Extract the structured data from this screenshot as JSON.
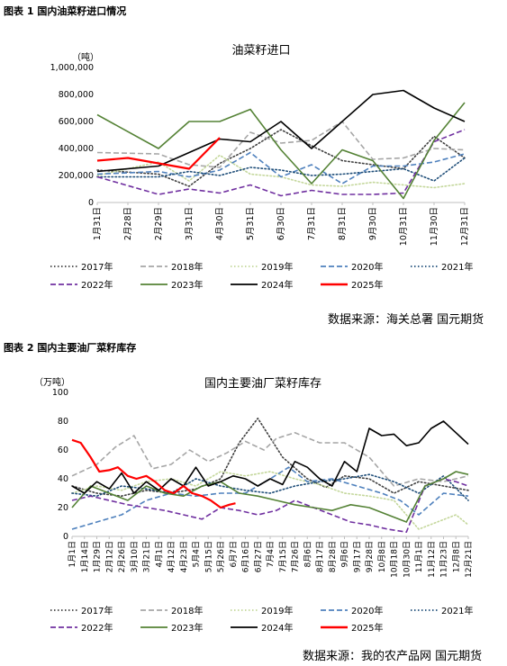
{
  "fig1": {
    "label": "图表 1 国内油菜籽进口情况",
    "source": "数据来源：海关总署 国元期货"
  },
  "fig2": {
    "label": "图表 2 国内主要油厂菜籽库存",
    "source": "数据来源：我的农产品网 国元期货"
  },
  "chart_data": [
    {
      "type": "line",
      "title": "油菜籽进口",
      "unit": "（吨）",
      "ylim": [
        0,
        1000000
      ],
      "yticks": [
        0,
        200000,
        400000,
        600000,
        800000,
        1000000
      ],
      "ytick_labels": [
        "0",
        "200,000",
        "400,000",
        "600,000",
        "800,000",
        "1,000,000"
      ],
      "categories": [
        "1月31日",
        "2月28日",
        "2月29日",
        "3月31日",
        "4月30日",
        "5月31日",
        "6月30日",
        "7月31日",
        "8月31日",
        "9月30日",
        "10月31日",
        "11月30日",
        "12月31日"
      ],
      "legend_position": "bottom",
      "series": [
        {
          "name": "2017年",
          "color": "#404040",
          "dash": "dot",
          "values": [
            240000,
            null,
            210000,
            120000,
            290000,
            400000,
            540000,
            420000,
            310000,
            280000,
            250000,
            490000,
            330000
          ]
        },
        {
          "name": "2018年",
          "color": "#a6a6a6",
          "dash": "dash",
          "values": [
            370000,
            null,
            360000,
            280000,
            260000,
            520000,
            440000,
            460000,
            600000,
            320000,
            330000,
            400000,
            390000
          ]
        },
        {
          "name": "2019年",
          "color": "#c4d79b",
          "dash": "dot",
          "values": [
            200000,
            null,
            300000,
            160000,
            350000,
            210000,
            190000,
            130000,
            120000,
            150000,
            130000,
            110000,
            140000
          ]
        },
        {
          "name": "2020年",
          "color": "#4f81bd",
          "dash": "dash",
          "values": [
            210000,
            null,
            230000,
            190000,
            240000,
            370000,
            190000,
            280000,
            140000,
            270000,
            270000,
            300000,
            360000
          ]
        },
        {
          "name": "2021年",
          "color": "#1f4e79",
          "dash": "dot",
          "values": [
            190000,
            null,
            190000,
            230000,
            200000,
            260000,
            240000,
            200000,
            210000,
            230000,
            250000,
            160000,
            330000
          ]
        },
        {
          "name": "2022年",
          "color": "#7030a0",
          "dash": "dash",
          "values": [
            190000,
            null,
            60000,
            100000,
            70000,
            130000,
            50000,
            90000,
            60000,
            60000,
            70000,
            450000,
            540000
          ]
        },
        {
          "name": "2023年",
          "color": "#548235",
          "dash": "solid",
          "values": [
            650000,
            null,
            400000,
            600000,
            600000,
            690000,
            390000,
            140000,
            390000,
            310000,
            30000,
            460000,
            740000
          ]
        },
        {
          "name": "2024年",
          "color": "#000000",
          "dash": "solid",
          "values": [
            230000,
            null,
            270000,
            370000,
            470000,
            450000,
            600000,
            400000,
            600000,
            800000,
            830000,
            700000,
            600000
          ]
        },
        {
          "name": "2025年",
          "color": "#ff0000",
          "dash": "solid",
          "values": [
            310000,
            330000,
            null,
            250000,
            480000,
            null,
            null,
            null,
            null,
            null,
            null,
            null,
            null
          ]
        }
      ]
    },
    {
      "type": "line",
      "title": "国内主要油厂菜籽库存",
      "unit": "（万吨）",
      "ylim": [
        0,
        100
      ],
      "yticks": [
        0,
        20,
        40,
        60,
        80,
        100
      ],
      "ytick_labels": [
        "0",
        "20",
        "40",
        "60",
        "80",
        "100"
      ],
      "xtick_labels": [
        "1月1日",
        "1月14日",
        "1月29日",
        "2月12日",
        "2月26日",
        "3月10日",
        "3月21日",
        "4月1日",
        "4月12日",
        "4月23日",
        "5月4日",
        "5月15日",
        "5月26日",
        "6月7日",
        "6月16日",
        "6月27日",
        "7月4日",
        "7月15日",
        "7月26日",
        "8月6日",
        "8月17日",
        "8月28日",
        "9月6日",
        "9月17日",
        "9月28日",
        "10月8日",
        "10月18日",
        "10月30日",
        "11月1日",
        "11月12日",
        "11月23日",
        "12月8日",
        "12月21日"
      ],
      "legend_position": "bottom",
      "series": [
        {
          "name": "2017年",
          "color": "#404040",
          "dash": "dot",
          "x": [
            0,
            2,
            4,
            6,
            8,
            10,
            12,
            13.5,
            15,
            17,
            19,
            20.5,
            22,
            24,
            26,
            28,
            30,
            32
          ],
          "values": [
            35,
            30,
            28,
            32,
            30,
            33,
            40,
            65,
            82,
            55,
            40,
            34,
            42,
            40,
            30,
            38,
            35,
            32
          ]
        },
        {
          "name": "2018年",
          "color": "#a6a6a6",
          "dash": "dash",
          "x": [
            0,
            2,
            3.5,
            5,
            6.5,
            8,
            9.5,
            11,
            12.5,
            14,
            15.5,
            16.5,
            18,
            20,
            22,
            24,
            26,
            28,
            30,
            32
          ],
          "values": [
            42,
            50,
            62,
            70,
            47,
            50,
            60,
            52,
            58,
            66,
            60,
            68,
            72,
            65,
            65,
            55,
            35,
            40,
            38,
            42
          ]
        },
        {
          "name": "2019年",
          "color": "#c4d79b",
          "dash": "dot",
          "x": [
            0,
            2,
            4,
            6,
            8,
            10,
            12,
            14,
            16,
            18,
            20,
            22,
            24,
            26,
            28,
            29.5,
            31,
            32
          ],
          "values": [
            30,
            35,
            32,
            38,
            40,
            35,
            45,
            42,
            45,
            40,
            36,
            30,
            28,
            25,
            5,
            10,
            15,
            8
          ]
        },
        {
          "name": "2020年",
          "color": "#4f81bd",
          "dash": "dash",
          "x": [
            0,
            2,
            4,
            6,
            8,
            10,
            12,
            14,
            16,
            17.5,
            19,
            21,
            23,
            25,
            26.5,
            28,
            30,
            32
          ],
          "values": [
            5,
            10,
            15,
            25,
            30,
            28,
            30,
            30,
            40,
            48,
            38,
            40,
            35,
            30,
            25,
            15,
            30,
            28
          ]
        },
        {
          "name": "2021年",
          "color": "#1f4e79",
          "dash": "dot",
          "x": [
            0,
            2,
            4,
            6,
            8,
            10,
            12,
            14,
            16,
            18,
            20,
            22,
            24,
            26,
            28,
            30,
            32
          ],
          "values": [
            30,
            28,
            35,
            33,
            30,
            40,
            35,
            32,
            30,
            35,
            38,
            40,
            43,
            38,
            30,
            42,
            25
          ]
        },
        {
          "name": "2022年",
          "color": "#7030a0",
          "dash": "dash",
          "x": [
            0,
            1.5,
            3,
            4.5,
            6,
            7.5,
            9,
            10.5,
            12,
            13.5,
            15,
            16.5,
            18,
            19.5,
            21,
            22.5,
            24,
            25.5,
            27,
            28.5,
            30,
            31,
            32
          ],
          "values": [
            25,
            28,
            25,
            22,
            20,
            18,
            15,
            12,
            20,
            18,
            15,
            18,
            25,
            20,
            15,
            10,
            8,
            5,
            3,
            35,
            40,
            38,
            35
          ]
        },
        {
          "name": "2023年",
          "color": "#548235",
          "dash": "solid",
          "x": [
            0,
            1.5,
            3,
            4.5,
            6,
            7.5,
            9,
            10.5,
            12,
            13.5,
            15,
            16.5,
            18,
            19.5,
            21,
            22.5,
            24,
            25.5,
            27,
            28.5,
            30,
            31,
            32
          ],
          "values": [
            20,
            35,
            30,
            25,
            35,
            30,
            28,
            35,
            38,
            30,
            28,
            25,
            22,
            20,
            18,
            22,
            20,
            15,
            10,
            35,
            40,
            45,
            43
          ]
        },
        {
          "name": "2024年",
          "color": "#000000",
          "dash": "solid",
          "x": [
            0,
            1,
            2,
            3,
            4,
            5,
            6,
            7,
            8,
            9,
            10,
            11,
            12,
            13,
            14,
            15,
            16,
            17,
            18,
            19,
            20,
            21,
            22,
            23,
            24,
            25,
            26,
            27,
            28,
            29,
            30,
            31,
            32
          ],
          "values": [
            35,
            30,
            38,
            33,
            44,
            30,
            38,
            32,
            40,
            35,
            48,
            35,
            38,
            42,
            40,
            35,
            40,
            36,
            52,
            48,
            40,
            35,
            52,
            45,
            75,
            70,
            71,
            63,
            65,
            75,
            80,
            72,
            64
          ]
        },
        {
          "name": "2025年",
          "color": "#ff0000",
          "dash": "solid",
          "x": [
            0,
            0.7,
            1.5,
            2.2,
            3,
            3.7,
            4.5,
            5.2,
            6,
            6.7,
            7.5,
            8.2,
            9,
            9.7,
            10.5,
            11.2,
            12,
            12.7,
            13.2
          ],
          "values": [
            67,
            65,
            55,
            45,
            46,
            48,
            42,
            40,
            42,
            38,
            32,
            30,
            35,
            30,
            28,
            25,
            20,
            22,
            23
          ]
        }
      ]
    }
  ]
}
